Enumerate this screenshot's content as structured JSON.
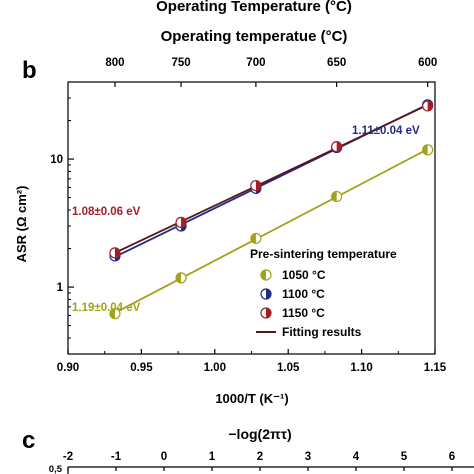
{
  "figure": {
    "clipped_title": "Operating Temperature (°C)",
    "panel_b_label": "b",
    "panel_c_label": "c"
  },
  "chart_data": [
    {
      "type": "scatter",
      "panel": "b",
      "title": "Operating temperatue (°C)",
      "xlabel": "1000/T (K⁻¹)",
      "ylabel": "ASR (Ω cm²)",
      "xlim": [
        0.9,
        1.15
      ],
      "ylim": [
        0.3,
        40
      ],
      "yscale": "log",
      "x_ticks": [
        "0.90",
        "0.95",
        "1.00",
        "1.05",
        "1.10",
        "1.15"
      ],
      "x_tick_values": [
        0.9,
        0.95,
        1.0,
        1.05,
        1.1,
        1.15
      ],
      "y_ticks": [
        "1",
        "10"
      ],
      "y_tick_values": [
        1,
        10
      ],
      "top_axis_ticks": [
        "800",
        "750",
        "700",
        "650",
        "600"
      ],
      "top_axis_tick_values": [
        0.932,
        0.977,
        1.028,
        1.083,
        1.145
      ],
      "grid": false,
      "legend_title": "Pre-sintering temperature",
      "legend_position": "center-right",
      "fit_legend_label": "Fitting results",
      "colors": {
        "s1050": "#a2a31a",
        "s1100": "#1f2a8c",
        "s1150": "#a31f24",
        "fit": "#5a1616",
        "fit1050": "#a2a31a"
      },
      "series": [
        {
          "name": "1050 °C",
          "color": "#a2a31a",
          "fill_style": "left-half",
          "x": [
            0.932,
            0.977,
            1.028,
            1.083,
            1.145
          ],
          "y": [
            0.62,
            1.18,
            2.4,
            5.1,
            11.8
          ],
          "activation_energy": "1.19±0.04 eV"
        },
        {
          "name": "1100 °C",
          "color": "#1f2a8c",
          "fill_style": "right-half",
          "x": [
            0.932,
            0.977,
            1.028,
            1.083,
            1.145
          ],
          "y": [
            1.75,
            3.0,
            5.9,
            12.3,
            26.5
          ],
          "activation_energy": "1.11±0.04 eV"
        },
        {
          "name": "1150 °C",
          "color": "#a31f24",
          "fill_style": "right-half",
          "x": [
            0.932,
            0.977,
            1.028,
            1.083,
            1.145
          ],
          "y": [
            1.85,
            3.2,
            6.2,
            12.5,
            26.0
          ],
          "activation_energy": "1.08±0.06 eV"
        }
      ]
    },
    {
      "type": "line",
      "panel": "c",
      "title": "−log(2πτ)",
      "top_axis_ticks": [
        "-2",
        "-1",
        "0",
        "1",
        "2",
        "3",
        "4",
        "5",
        "6"
      ],
      "top_axis_tick_values": [
        -2,
        -1,
        0,
        1,
        2,
        3,
        4,
        5,
        6
      ],
      "y_ticks": [
        "0,5"
      ],
      "xlim": [
        -2,
        6
      ]
    }
  ]
}
